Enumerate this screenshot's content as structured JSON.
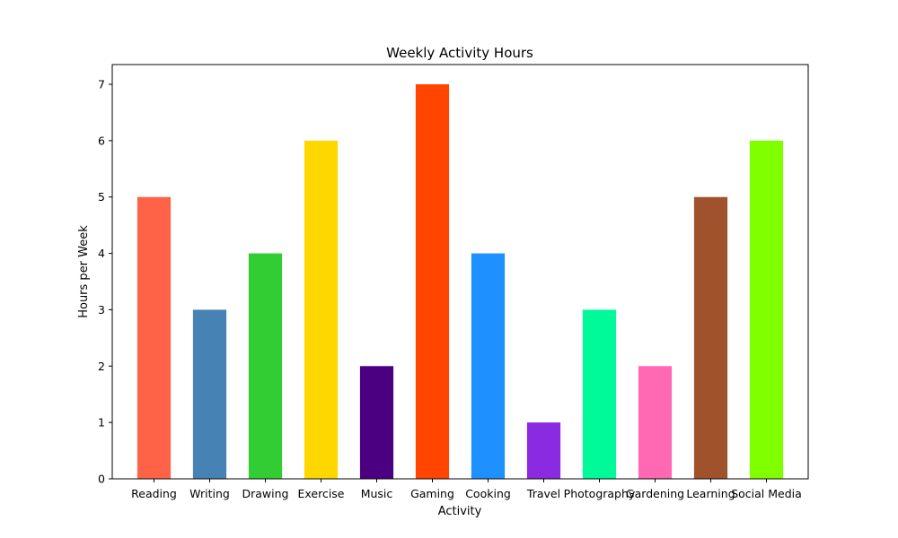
{
  "chart_data": {
    "type": "bar",
    "title": "Weekly Activity Hours",
    "xlabel": "Activity",
    "ylabel": "Hours per Week",
    "ylim": [
      0,
      7.35
    ],
    "yticks": [
      0,
      1,
      2,
      3,
      4,
      5,
      6,
      7
    ],
    "grid": false,
    "categories": [
      "Reading",
      "Writing",
      "Drawing",
      "Exercise",
      "Music",
      "Gaming",
      "Cooking",
      "Travel",
      "Photography",
      "Gardening",
      "Learning",
      "Social Media"
    ],
    "values": [
      5,
      3,
      4,
      6,
      2,
      7,
      4,
      1,
      3,
      2,
      5,
      6
    ],
    "colors": [
      "#ff6347",
      "#4682b4",
      "#32cd32",
      "#ffd700",
      "#4b0082",
      "#ff4500",
      "#1e90ff",
      "#8a2be2",
      "#00fa9a",
      "#ff69b4",
      "#a0522d",
      "#7fff00"
    ]
  }
}
